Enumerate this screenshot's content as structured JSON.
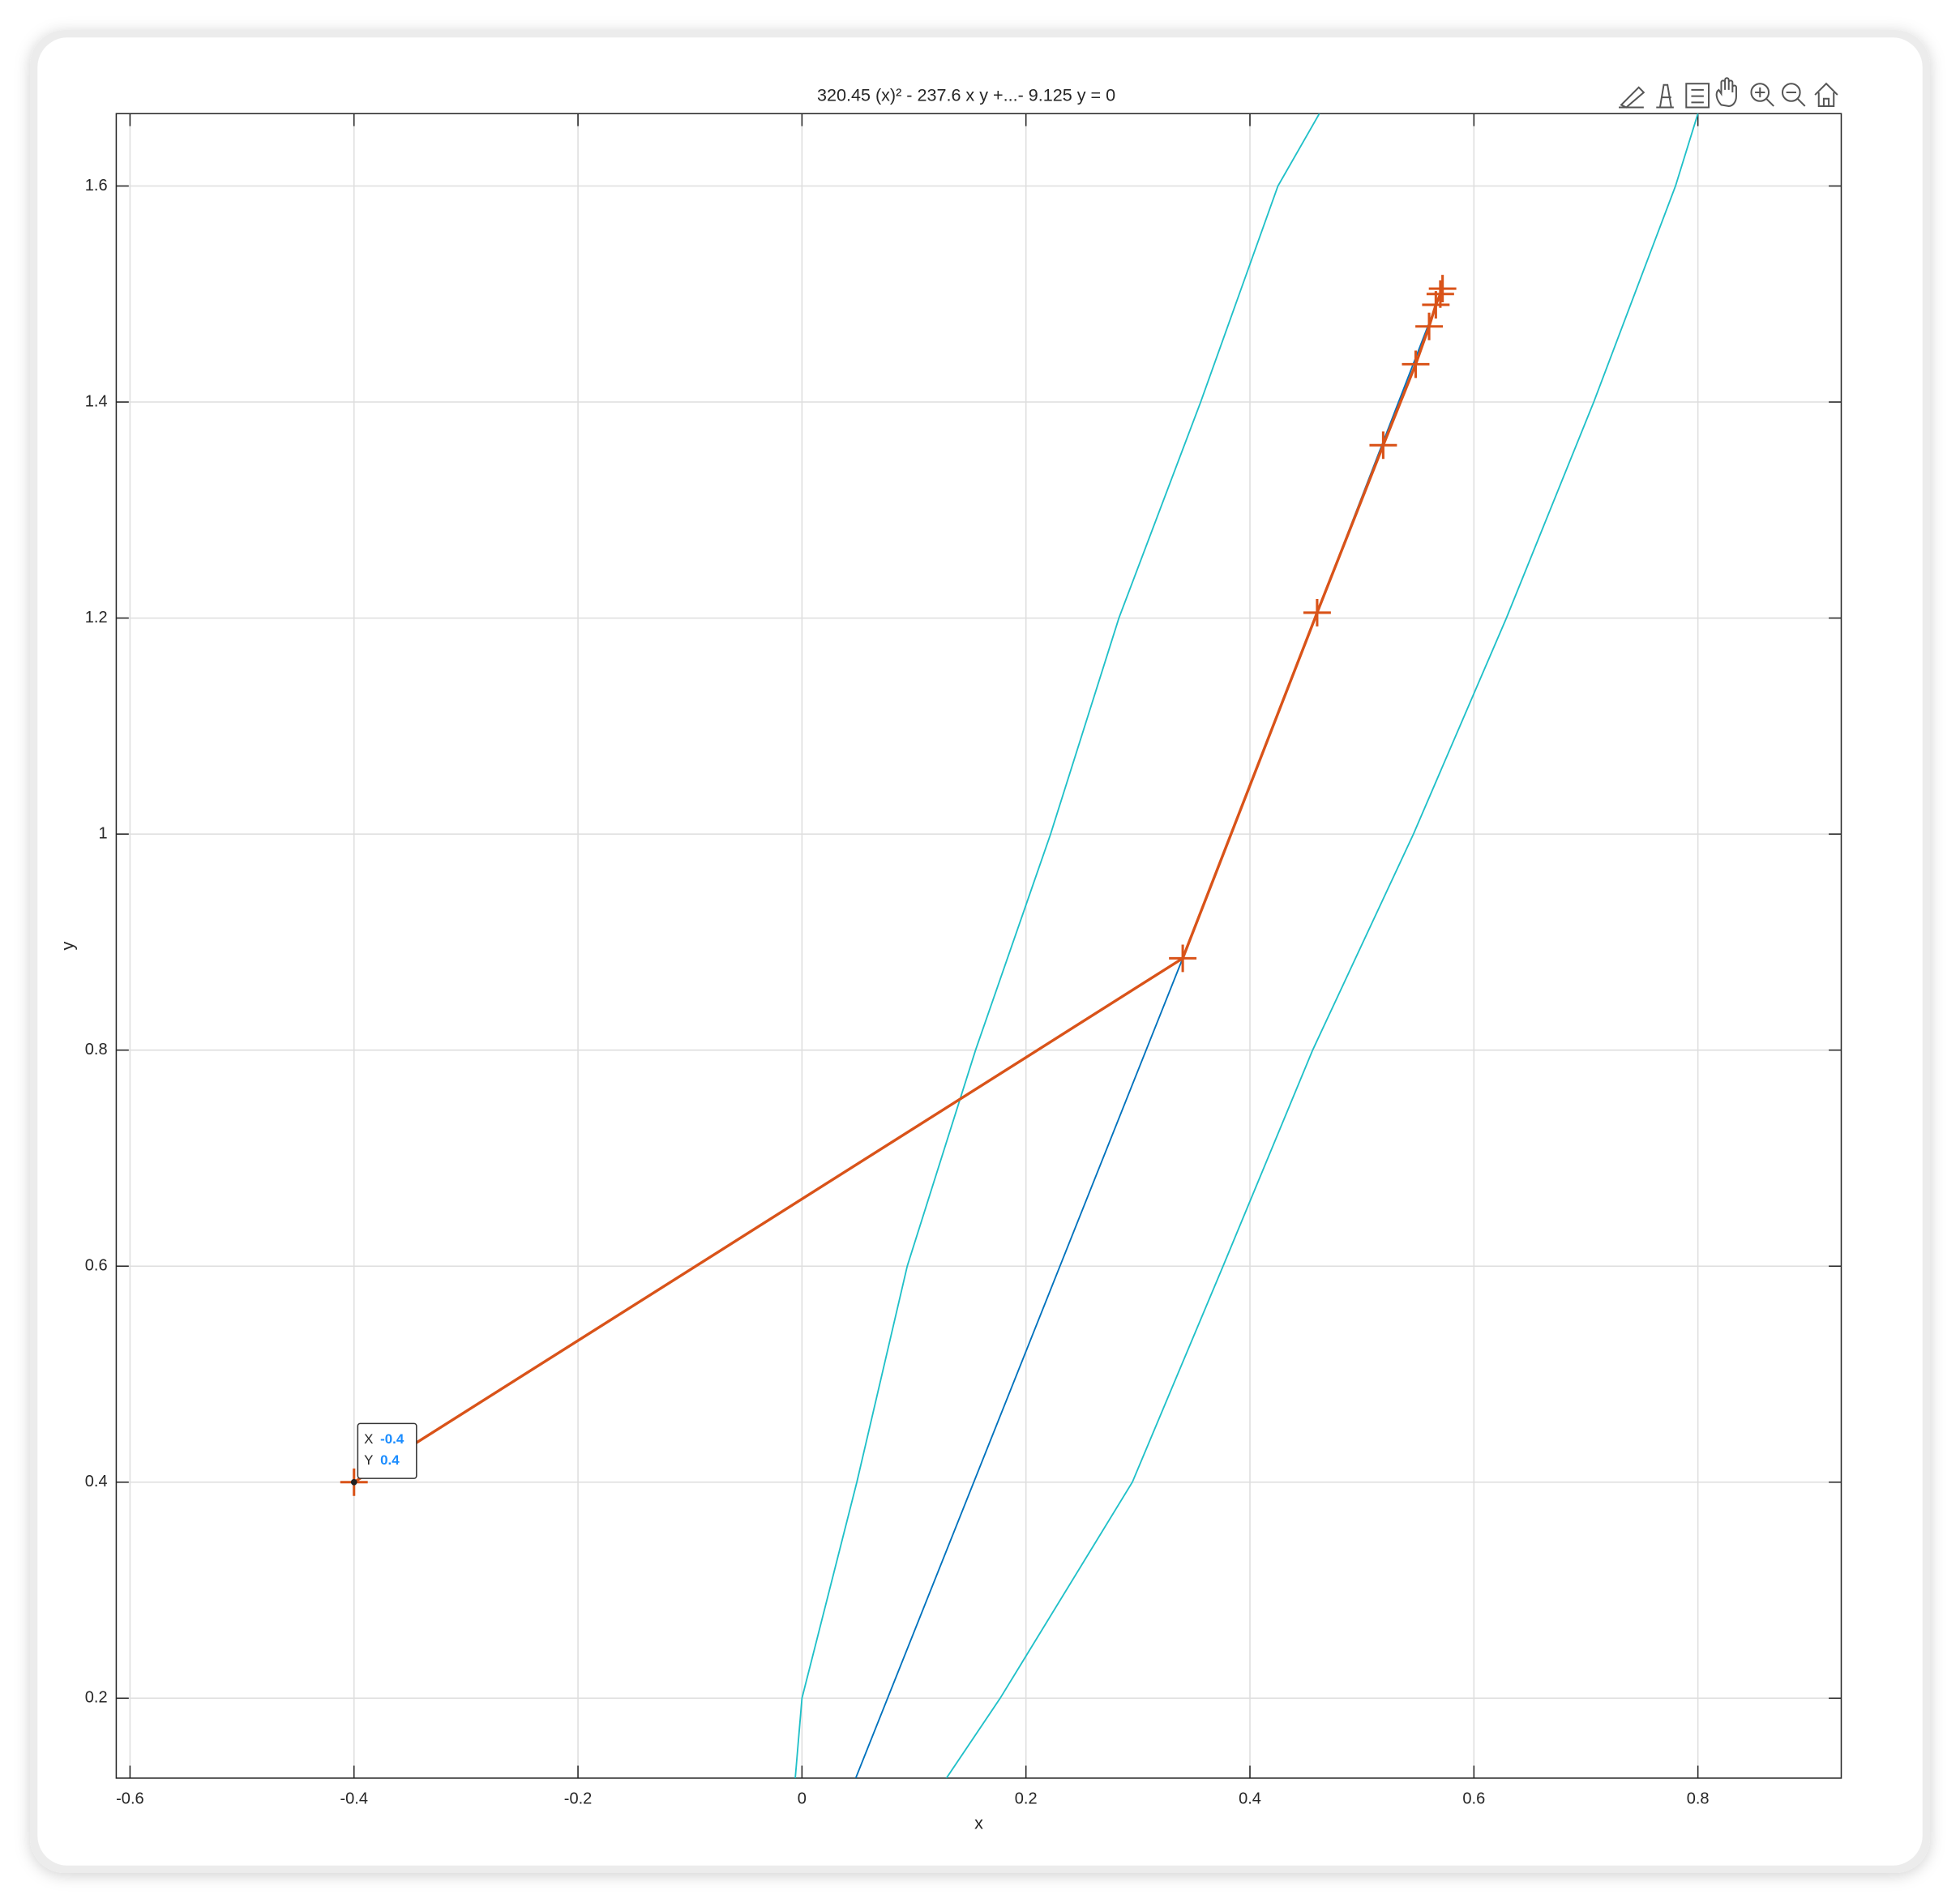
{
  "chart_data": {
    "type": "line",
    "title": "320.45   (x)² - 237.6 x y +...- 9.125   y = 0",
    "x_label": "x",
    "y_label": "y",
    "xlim": [
      -0.6123,
      0.928
    ],
    "ylim": [
      0.126,
      1.667
    ],
    "xticks": [
      -0.6,
      -0.4,
      -0.2,
      0,
      0.2,
      0.4,
      0.6,
      0.8
    ],
    "yticks": [
      0.2,
      0.4,
      0.6,
      0.8,
      1,
      1.2,
      1.4,
      1.6
    ],
    "grid": true,
    "series": [
      {
        "color": "#20c0c8",
        "x": [
          -0.006,
          0.0,
          0.049,
          0.094,
          0.155,
          0.222,
          0.283,
          0.356,
          0.425,
          0.462
        ],
        "values": [
          0.126,
          0.2,
          0.4,
          0.6,
          0.8,
          1.0,
          1.2,
          1.4,
          1.6,
          1.667
        ]
      },
      {
        "color": "#20c0c8",
        "x": [
          0.129,
          0.177,
          0.295,
          0.376,
          0.456,
          0.546,
          0.629,
          0.707,
          0.78,
          0.8
        ],
        "values": [
          0.126,
          0.2,
          0.4,
          0.6,
          0.8,
          1.0,
          1.2,
          1.4,
          1.6,
          1.667
        ]
      },
      {
        "color": "#0072bd",
        "x": [
          0.048,
          0.34,
          0.46,
          0.57
        ],
        "values": [
          0.126,
          0.885,
          1.205,
          1.5
        ]
      },
      {
        "color": "#d95319",
        "marker": "+",
        "x": [
          -0.4,
          0.34,
          0.46,
          0.519,
          0.548,
          0.56,
          0.566,
          0.57,
          0.572
        ],
        "values": [
          0.4,
          0.885,
          1.205,
          1.36,
          1.435,
          1.47,
          1.49,
          1.5,
          1.505
        ]
      }
    ],
    "datatip": {
      "x_name": "X",
      "y_name": "Y",
      "x": -0.4,
      "y": 0.4
    }
  }
}
